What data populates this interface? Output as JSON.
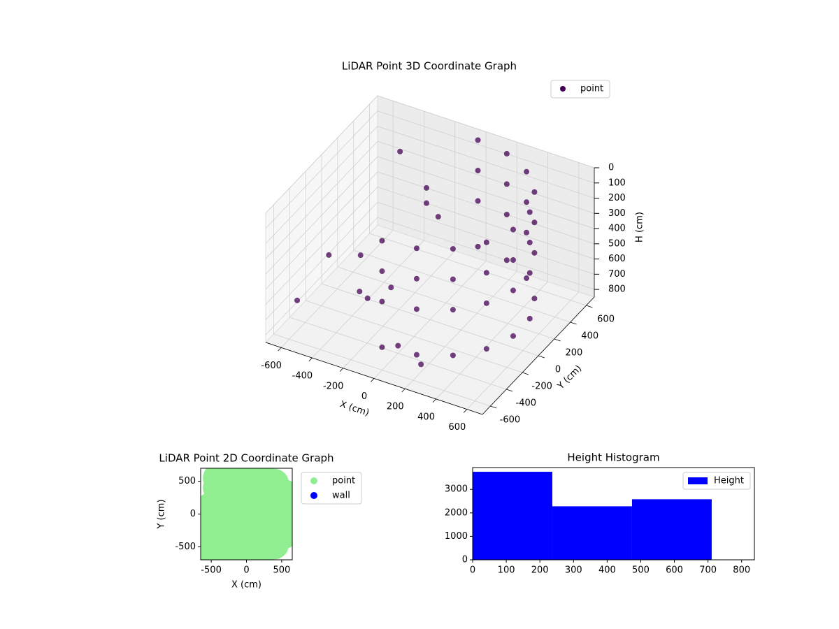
{
  "chart_data": [
    {
      "type": "scatter3d",
      "title": "LiDAR Point 3D Coordinate Graph",
      "xlabel": "X (cm)",
      "ylabel": "Y (cm)",
      "zlabel": "H (cm)",
      "xlim": [
        -700,
        700
      ],
      "ylim": [
        -700,
        700
      ],
      "zlim": [
        0,
        850
      ],
      "zinverted": true,
      "xticks": [
        -600,
        -400,
        -200,
        0,
        200,
        400,
        600
      ],
      "yticks": [
        -600,
        -400,
        -200,
        0,
        200,
        400,
        600
      ],
      "zticks": [
        0,
        100,
        200,
        300,
        400,
        500,
        600,
        700,
        800
      ],
      "grid": true,
      "legend": "upper right",
      "series": [
        {
          "name": "point",
          "color": "#440154",
          "x": [
            0,
            205,
            386,
            520,
            591,
            591,
            520,
            386,
            205,
            0,
            0,
            205,
            386,
            520,
            591,
            591,
            520,
            386,
            205,
            0,
            0,
            205,
            386,
            520,
            591,
            591,
            520,
            386,
            205,
            0,
            0,
            205,
            386,
            520,
            591,
            591,
            520,
            386,
            205,
            0,
            -550,
            -500,
            -300,
            -200,
            -100,
            -100,
            -50,
            0,
            200,
            -600,
            -400,
            -300
          ],
          "y": [
            -600,
            -564,
            -460,
            -300,
            -104,
            104,
            300,
            460,
            564,
            600,
            -600,
            -564,
            -460,
            -300,
            -104,
            104,
            300,
            460,
            564,
            600,
            -600,
            -564,
            -460,
            -300,
            -104,
            104,
            300,
            460,
            564,
            600,
            -600,
            -564,
            -460,
            -300,
            -104,
            104,
            300,
            460,
            564,
            600,
            -200,
            100,
            -300,
            -100,
            150,
            150,
            200,
            -400,
            -500,
            -500,
            400,
            -200
          ],
          "z": [
            0,
            0,
            0,
            0,
            0,
            0,
            0,
            0,
            0,
            0,
            200,
            200,
            200,
            200,
            200,
            200,
            200,
            200,
            200,
            200,
            400,
            400,
            400,
            400,
            400,
            400,
            400,
            400,
            400,
            400,
            700,
            700,
            700,
            700,
            700,
            700,
            700,
            700,
            700,
            700,
            500,
            650,
            600,
            650,
            100,
            200,
            300,
            800,
            800,
            650,
            100,
            700
          ]
        }
      ]
    },
    {
      "type": "scatter",
      "title": "LiDAR Point 2D Coordinate Graph",
      "xlabel": "X (cm)",
      "ylabel": "Y (cm)",
      "xlim": [
        -650,
        650
      ],
      "ylim": [
        -700,
        700
      ],
      "xticks": [
        -500,
        0,
        500
      ],
      "yticks": [
        -500,
        0,
        500
      ],
      "legend": "outside right",
      "series": [
        {
          "name": "point",
          "color": "#90ee90",
          "x": [
            0,
            205,
            386,
            520,
            591,
            591,
            520,
            386,
            205,
            0,
            -550,
            -500,
            -300,
            -200,
            -100,
            -50,
            0,
            200,
            -600,
            -400,
            -300,
            300,
            100,
            -200,
            -400,
            250,
            -500,
            400,
            0,
            -300
          ],
          "y": [
            -600,
            -564,
            -460,
            -300,
            -104,
            104,
            300,
            460,
            564,
            600,
            -200,
            100,
            -300,
            -100,
            150,
            200,
            -400,
            -500,
            -500,
            400,
            -200,
            0,
            300,
            500,
            550,
            -300,
            -600,
            200,
            0,
            -500
          ]
        },
        {
          "name": "wall",
          "color": "#0000ff",
          "x": [],
          "y": []
        }
      ]
    },
    {
      "type": "histogram",
      "title": "Height Histogram",
      "name": "Height",
      "color": "#0000ff",
      "bins": [
        0,
        237,
        474,
        711
      ],
      "values": [
        3750,
        2280,
        2580
      ],
      "xlim": [
        0,
        838
      ],
      "ylim": [
        0,
        3930
      ],
      "xticks": [
        0,
        100,
        200,
        300,
        400,
        500,
        600,
        700,
        800
      ],
      "yticks": [
        0,
        1000,
        2000,
        3000
      ],
      "legend": "upper right"
    }
  ]
}
